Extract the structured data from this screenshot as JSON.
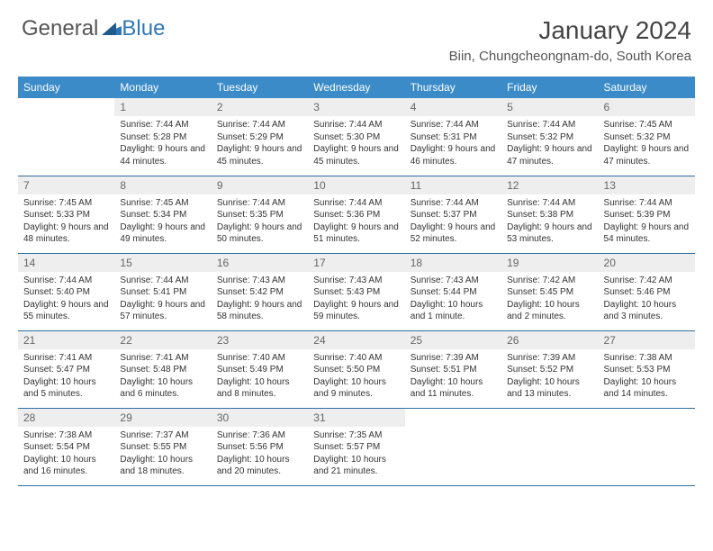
{
  "logo": {
    "text1": "General",
    "text2": "Blue"
  },
  "title": "January 2024",
  "location": "Biin, Chungcheongnam-do, South Korea",
  "colors": {
    "header_bg": "#3b8bc9",
    "header_text": "#ffffff",
    "daynum_bg": "#eeeeee",
    "row_border": "#2f6ea5",
    "logo_accent": "#2f78b7"
  },
  "weekdays": [
    "Sunday",
    "Monday",
    "Tuesday",
    "Wednesday",
    "Thursday",
    "Friday",
    "Saturday"
  ],
  "weeks": [
    [
      null,
      {
        "n": "1",
        "sr": "7:44 AM",
        "ss": "5:28 PM",
        "dl": "9 hours and 44 minutes."
      },
      {
        "n": "2",
        "sr": "7:44 AM",
        "ss": "5:29 PM",
        "dl": "9 hours and 45 minutes."
      },
      {
        "n": "3",
        "sr": "7:44 AM",
        "ss": "5:30 PM",
        "dl": "9 hours and 45 minutes."
      },
      {
        "n": "4",
        "sr": "7:44 AM",
        "ss": "5:31 PM",
        "dl": "9 hours and 46 minutes."
      },
      {
        "n": "5",
        "sr": "7:44 AM",
        "ss": "5:32 PM",
        "dl": "9 hours and 47 minutes."
      },
      {
        "n": "6",
        "sr": "7:45 AM",
        "ss": "5:32 PM",
        "dl": "9 hours and 47 minutes."
      }
    ],
    [
      {
        "n": "7",
        "sr": "7:45 AM",
        "ss": "5:33 PM",
        "dl": "9 hours and 48 minutes."
      },
      {
        "n": "8",
        "sr": "7:45 AM",
        "ss": "5:34 PM",
        "dl": "9 hours and 49 minutes."
      },
      {
        "n": "9",
        "sr": "7:44 AM",
        "ss": "5:35 PM",
        "dl": "9 hours and 50 minutes."
      },
      {
        "n": "10",
        "sr": "7:44 AM",
        "ss": "5:36 PM",
        "dl": "9 hours and 51 minutes."
      },
      {
        "n": "11",
        "sr": "7:44 AM",
        "ss": "5:37 PM",
        "dl": "9 hours and 52 minutes."
      },
      {
        "n": "12",
        "sr": "7:44 AM",
        "ss": "5:38 PM",
        "dl": "9 hours and 53 minutes."
      },
      {
        "n": "13",
        "sr": "7:44 AM",
        "ss": "5:39 PM",
        "dl": "9 hours and 54 minutes."
      }
    ],
    [
      {
        "n": "14",
        "sr": "7:44 AM",
        "ss": "5:40 PM",
        "dl": "9 hours and 55 minutes."
      },
      {
        "n": "15",
        "sr": "7:44 AM",
        "ss": "5:41 PM",
        "dl": "9 hours and 57 minutes."
      },
      {
        "n": "16",
        "sr": "7:43 AM",
        "ss": "5:42 PM",
        "dl": "9 hours and 58 minutes."
      },
      {
        "n": "17",
        "sr": "7:43 AM",
        "ss": "5:43 PM",
        "dl": "9 hours and 59 minutes."
      },
      {
        "n": "18",
        "sr": "7:43 AM",
        "ss": "5:44 PM",
        "dl": "10 hours and 1 minute."
      },
      {
        "n": "19",
        "sr": "7:42 AM",
        "ss": "5:45 PM",
        "dl": "10 hours and 2 minutes."
      },
      {
        "n": "20",
        "sr": "7:42 AM",
        "ss": "5:46 PM",
        "dl": "10 hours and 3 minutes."
      }
    ],
    [
      {
        "n": "21",
        "sr": "7:41 AM",
        "ss": "5:47 PM",
        "dl": "10 hours and 5 minutes."
      },
      {
        "n": "22",
        "sr": "7:41 AM",
        "ss": "5:48 PM",
        "dl": "10 hours and 6 minutes."
      },
      {
        "n": "23",
        "sr": "7:40 AM",
        "ss": "5:49 PM",
        "dl": "10 hours and 8 minutes."
      },
      {
        "n": "24",
        "sr": "7:40 AM",
        "ss": "5:50 PM",
        "dl": "10 hours and 9 minutes."
      },
      {
        "n": "25",
        "sr": "7:39 AM",
        "ss": "5:51 PM",
        "dl": "10 hours and 11 minutes."
      },
      {
        "n": "26",
        "sr": "7:39 AM",
        "ss": "5:52 PM",
        "dl": "10 hours and 13 minutes."
      },
      {
        "n": "27",
        "sr": "7:38 AM",
        "ss": "5:53 PM",
        "dl": "10 hours and 14 minutes."
      }
    ],
    [
      {
        "n": "28",
        "sr": "7:38 AM",
        "ss": "5:54 PM",
        "dl": "10 hours and 16 minutes."
      },
      {
        "n": "29",
        "sr": "7:37 AM",
        "ss": "5:55 PM",
        "dl": "10 hours and 18 minutes."
      },
      {
        "n": "30",
        "sr": "7:36 AM",
        "ss": "5:56 PM",
        "dl": "10 hours and 20 minutes."
      },
      {
        "n": "31",
        "sr": "7:35 AM",
        "ss": "5:57 PM",
        "dl": "10 hours and 21 minutes."
      },
      null,
      null,
      null
    ]
  ],
  "labels": {
    "sunrise": "Sunrise:",
    "sunset": "Sunset:",
    "daylight": "Daylight:"
  }
}
